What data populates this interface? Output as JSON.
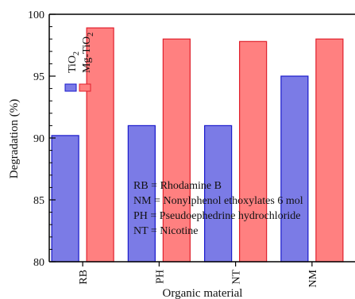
{
  "chart_data": {
    "type": "bar",
    "categories": [
      "RB",
      "PH",
      "NT",
      "NM"
    ],
    "series": [
      {
        "name": "TiO2",
        "values": [
          90.2,
          91.0,
          91.0,
          95.0
        ],
        "fill": "#7b7be6",
        "stroke": "#1a1acc"
      },
      {
        "name": "Mg-TiO2",
        "values": [
          98.9,
          98.0,
          97.8,
          98.0
        ],
        "fill": "#ff8080",
        "stroke": "#e0202c"
      }
    ],
    "legend": [
      {
        "base": "TiO",
        "sub": "2"
      },
      {
        "base": "Mg-TiO",
        "sub": "2"
      }
    ],
    "xlabel": "Organic material",
    "ylabel": "Degradation  (%)",
    "ylim": [
      80,
      100
    ],
    "yticks": [
      80,
      85,
      90,
      95,
      100
    ],
    "annotations": [
      "RB  = Rhodamine B",
      "NM = Nonylphenol ethoxylates 6 mol",
      "PH  = Pseudoephedrine hydrochloride",
      "NT  = Nicotine"
    ]
  }
}
